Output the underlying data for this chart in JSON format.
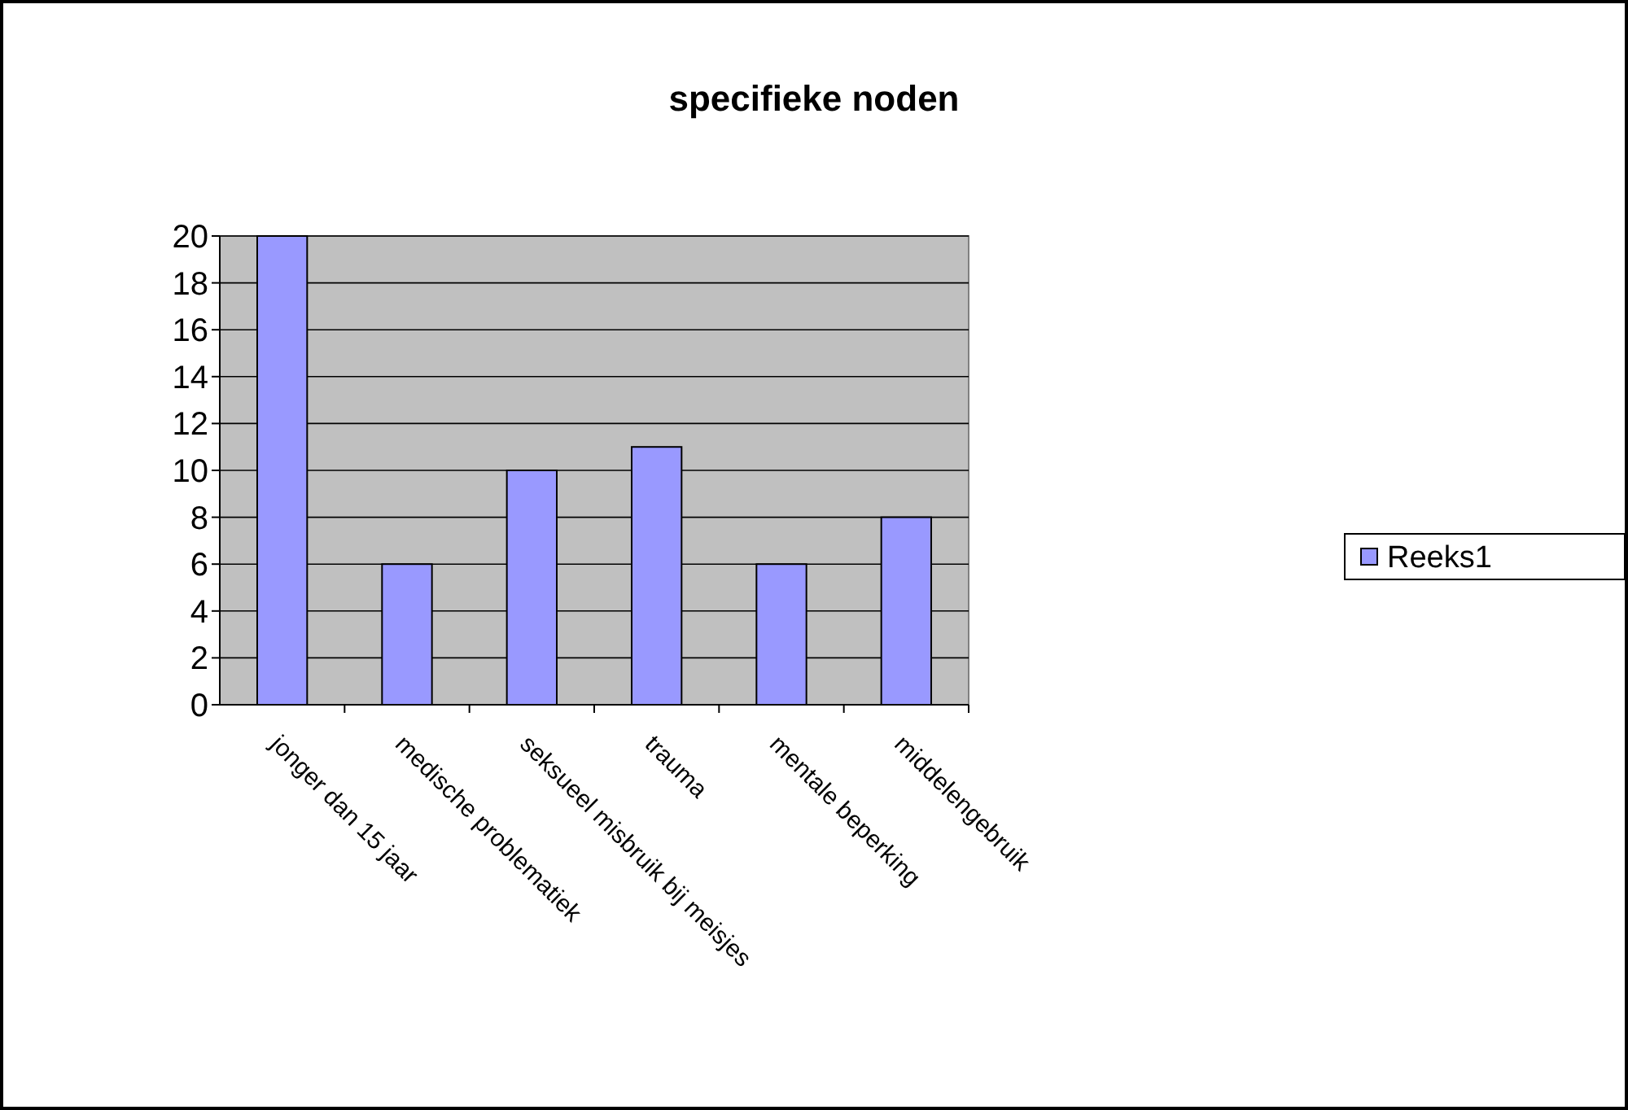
{
  "chart_data": {
    "type": "bar",
    "title": "specifieke noden",
    "categories": [
      "jonger dan 15 jaar",
      "medische problematiek",
      "seksueel misbruik bij meisjes",
      "trauma",
      "mentale beperking",
      "middelengebruik"
    ],
    "series": [
      {
        "name": "Reeks1",
        "color": "#9999ff",
        "values": [
          20,
          6,
          10,
          11,
          6,
          8
        ]
      }
    ],
    "ylim": [
      0,
      20
    ],
    "yticks": [
      0,
      2,
      4,
      6,
      8,
      10,
      12,
      14,
      16,
      18,
      20
    ],
    "grid": "y",
    "legend": "right"
  }
}
